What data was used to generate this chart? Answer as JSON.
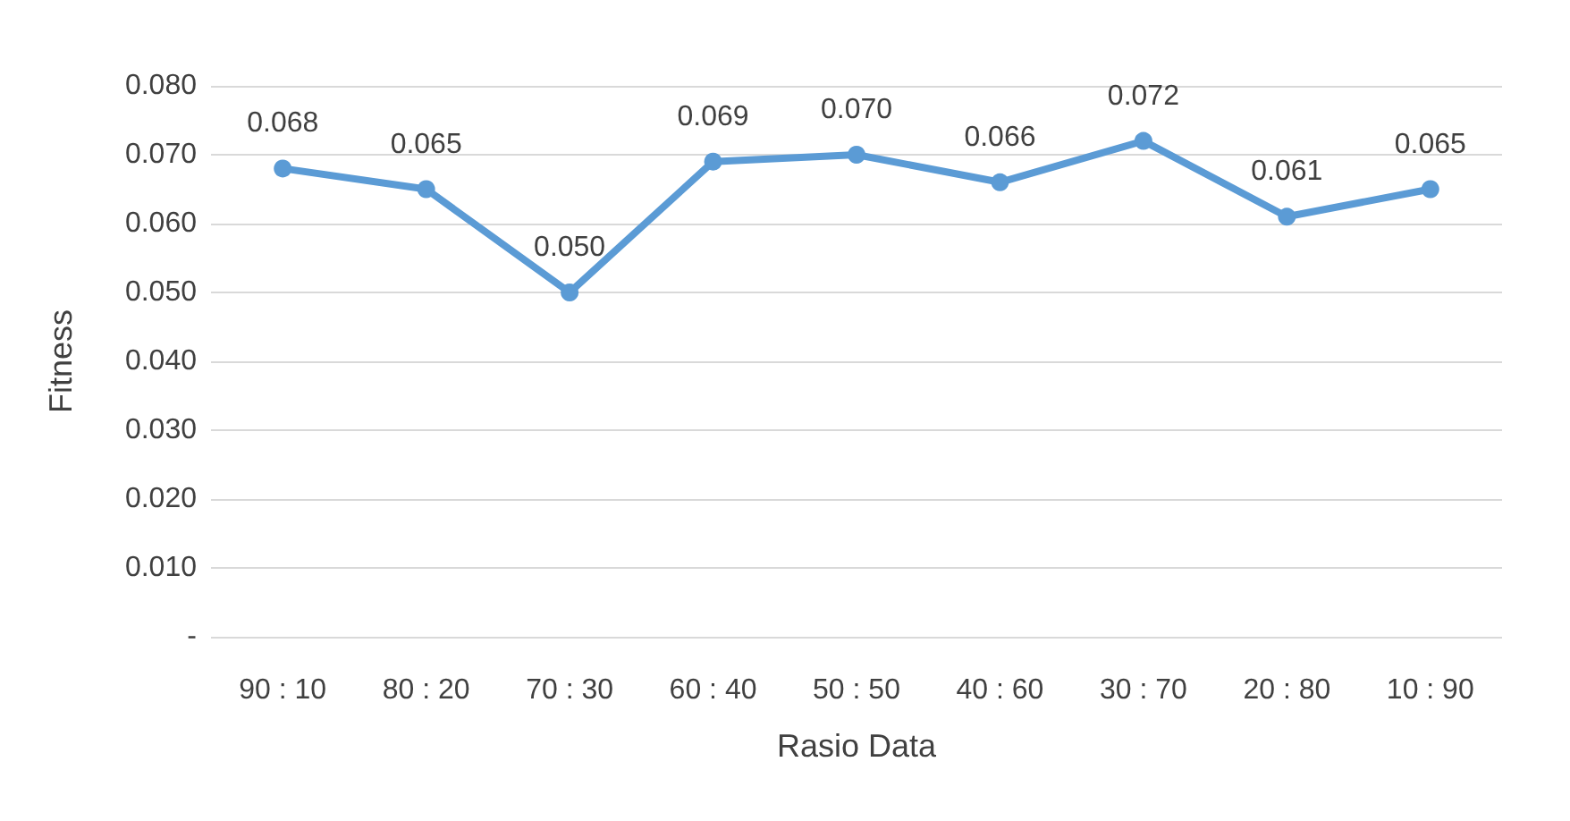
{
  "chart_data": {
    "type": "line",
    "xlabel": "Rasio Data",
    "ylabel": "Fitness",
    "categories": [
      "90 : 10",
      "80 : 20",
      "70 : 30",
      "60 : 40",
      "50 : 50",
      "40 : 60",
      "30 : 70",
      "20 : 80",
      "10 : 90"
    ],
    "series": [
      {
        "color": "#5b9bd5",
        "values": [
          0.068,
          0.065,
          0.05,
          0.069,
          0.07,
          0.066,
          0.072,
          0.061,
          0.065
        ],
        "value_labels": [
          "0.068",
          "0.065",
          "0.050",
          "0.069",
          "0.070",
          "0.066",
          "0.072",
          "0.061",
          "0.065"
        ]
      }
    ],
    "ylim": [
      0,
      0.08
    ],
    "yticks": [
      {
        "value": 0,
        "label": "-"
      },
      {
        "value": 0.01,
        "label": "0.010"
      },
      {
        "value": 0.02,
        "label": "0.020"
      },
      {
        "value": 0.03,
        "label": "0.030"
      },
      {
        "value": 0.04,
        "label": "0.040"
      },
      {
        "value": 0.05,
        "label": "0.050"
      },
      {
        "value": 0.06,
        "label": "0.060"
      },
      {
        "value": 0.07,
        "label": "0.070"
      },
      {
        "value": 0.08,
        "label": "0.080"
      }
    ],
    "grid": "y",
    "marker": "circle",
    "line_style": "solid"
  }
}
